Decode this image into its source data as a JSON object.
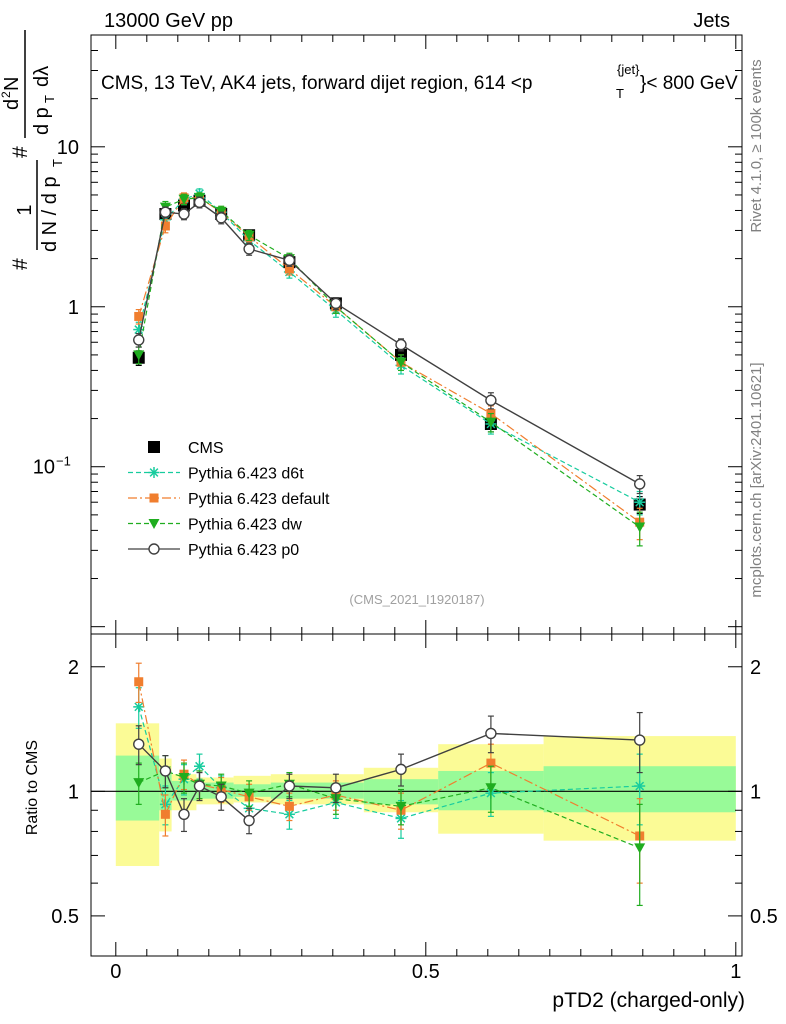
{
  "header": {
    "left": "13000 GeV pp",
    "right": "Jets"
  },
  "title": {
    "main": "CMS, 13 TeV, AK4 jets, forward dijet region, 614 <p",
    "sup": "{jet}",
    "sub": "T",
    "end": "}< 800 GeV"
  },
  "side_labels": {
    "rivet": "Rivet 4.1.0, ≥ 100k events",
    "mcplots": "mcplots.cern.ch [arXiv:2401.10621]"
  },
  "watermark": "(CMS_2021_I1920187)",
  "ylabel_top": {
    "hash1": "#",
    "one": "1",
    "den": "d N / d p",
    "den_sub": "T",
    "hash2": "#",
    "num": "d",
    "num_sup": "2",
    "num_rest": "N",
    "den2": "d p",
    "den2_sub": "T",
    "den2_rest": "dλ"
  },
  "chart_data": [
    {
      "type": "scatter",
      "panel": "main",
      "xlabel": "pTD2 (charged-only)",
      "ylabel": "# 1/(d N / d pT) # d2N/(d pT dλ)",
      "yscale": "log",
      "xlim": [
        -0.04,
        1.01
      ],
      "ylim": [
        0.009,
        50
      ],
      "y_ticks": [
        {
          "v": 10,
          "label": "10"
        },
        {
          "v": 1,
          "label": "1"
        },
        {
          "v": 0.1,
          "label": "10",
          "sup": "−1"
        }
      ],
      "x": [
        0.037,
        0.08,
        0.11,
        0.135,
        0.17,
        0.215,
        0.28,
        0.355,
        0.46,
        0.605,
        0.845
      ],
      "series": [
        {
          "name": "CMS",
          "color": "#000000",
          "style": "data",
          "values": [
            0.48,
            3.8,
            4.3,
            4.6,
            3.8,
            2.8,
            1.9,
            1.05,
            0.5,
            0.185,
            0.058
          ],
          "err": [
            0.05,
            0.3,
            0.3,
            0.3,
            0.25,
            0.2,
            0.15,
            0.08,
            0.05,
            0.02,
            0.007
          ]
        },
        {
          "name": "Pythia 6.423 d6t",
          "color": "#17cc9e",
          "style": "dashed",
          "marker": "star",
          "values": [
            0.72,
            3.5,
            4.7,
            5.1,
            3.9,
            2.6,
            1.65,
            0.95,
            0.43,
            0.185,
            0.06
          ],
          "err": [
            0.08,
            0.35,
            0.35,
            0.35,
            0.3,
            0.2,
            0.14,
            0.09,
            0.05,
            0.025,
            0.01
          ]
        },
        {
          "name": "Pythia 6.423 default",
          "color": "#f07e2e",
          "style": "dashdot",
          "marker": "square",
          "values": [
            0.87,
            3.2,
            4.8,
            4.8,
            3.9,
            2.75,
            1.72,
            1.0,
            0.45,
            0.215,
            0.045
          ],
          "err": [
            0.09,
            0.3,
            0.35,
            0.35,
            0.3,
            0.2,
            0.14,
            0.09,
            0.05,
            0.025,
            0.01
          ]
        },
        {
          "name": "Pythia 6.423 dw",
          "color": "#1fad1f",
          "style": "dashed",
          "marker": "tri_down",
          "values": [
            0.5,
            4.2,
            4.7,
            4.8,
            3.95,
            2.8,
            2.0,
            1.0,
            0.45,
            0.19,
            0.042
          ],
          "err": [
            0.06,
            0.35,
            0.35,
            0.35,
            0.3,
            0.2,
            0.16,
            0.09,
            0.05,
            0.025,
            0.01
          ]
        },
        {
          "name": "Pythia 6.423 p0",
          "color": "#404040",
          "style": "solid",
          "marker": "circle_open",
          "values": [
            0.62,
            3.9,
            3.8,
            4.5,
            3.6,
            2.3,
            1.95,
            1.05,
            0.58,
            0.26,
            0.078
          ],
          "err": [
            0.06,
            0.3,
            0.3,
            0.35,
            0.3,
            0.2,
            0.16,
            0.09,
            0.05,
            0.03,
            0.01
          ]
        }
      ]
    },
    {
      "type": "scatter",
      "panel": "ratio",
      "xlabel": "pTD2 (charged-only)",
      "ylabel": "Ratio to CMS",
      "yscale": "log",
      "xlim": [
        -0.04,
        1.01
      ],
      "ylim": [
        0.4,
        2.4
      ],
      "x_ticks": [
        {
          "v": 0,
          "label": "0"
        },
        {
          "v": 0.5,
          "label": "0.5"
        },
        {
          "v": 1,
          "label": "1"
        }
      ],
      "y_ticks": [
        {
          "v": 2,
          "label": "2"
        },
        {
          "v": 1,
          "label": "1"
        },
        {
          "v": 0.5,
          "label": "0.5"
        }
      ],
      "bands": [
        {
          "x0": 0.0,
          "x1": 0.07,
          "inner": [
            0.85,
            1.22
          ],
          "outer": [
            0.66,
            1.46
          ]
        },
        {
          "x0": 0.07,
          "x1": 0.09,
          "inner": [
            0.9,
            1.12
          ],
          "outer": [
            0.8,
            1.2
          ]
        },
        {
          "x0": 0.09,
          "x1": 0.13,
          "inner": [
            0.95,
            1.06
          ],
          "outer": [
            0.9,
            1.1
          ]
        },
        {
          "x0": 0.13,
          "x1": 0.19,
          "inner": [
            0.96,
            1.05
          ],
          "outer": [
            0.93,
            1.08
          ]
        },
        {
          "x0": 0.19,
          "x1": 0.25,
          "inner": [
            0.97,
            1.04
          ],
          "outer": [
            0.94,
            1.09
          ]
        },
        {
          "x0": 0.25,
          "x1": 0.4,
          "inner": [
            0.96,
            1.05
          ],
          "outer": [
            0.93,
            1.1
          ]
        },
        {
          "x0": 0.4,
          "x1": 0.52,
          "inner": [
            0.93,
            1.07
          ],
          "outer": [
            0.89,
            1.14
          ]
        },
        {
          "x0": 0.52,
          "x1": 0.69,
          "inner": [
            0.9,
            1.12
          ],
          "outer": [
            0.79,
            1.3
          ]
        },
        {
          "x0": 0.69,
          "x1": 1.0,
          "inner": [
            0.89,
            1.15
          ],
          "outer": [
            0.76,
            1.36
          ]
        }
      ],
      "x": [
        0.037,
        0.08,
        0.11,
        0.135,
        0.17,
        0.215,
        0.28,
        0.355,
        0.46,
        0.605,
        0.845
      ],
      "series": [
        {
          "name": "Pythia 6.423 d6t",
          "color": "#17cc9e",
          "style": "dashed",
          "marker": "star",
          "values": [
            1.6,
            0.93,
            1.07,
            1.15,
            1.02,
            0.91,
            0.88,
            0.94,
            0.86,
            0.99,
            1.03
          ],
          "err": [
            0.18,
            0.1,
            0.09,
            0.08,
            0.07,
            0.07,
            0.07,
            0.08,
            0.09,
            0.12,
            0.2
          ]
        },
        {
          "name": "Pythia 6.423 default",
          "color": "#f07e2e",
          "style": "dashdot",
          "marker": "square",
          "values": [
            1.84,
            0.88,
            1.1,
            1.04,
            1.01,
            0.97,
            0.92,
            0.98,
            0.9,
            1.17,
            0.78
          ],
          "err": [
            0.2,
            0.1,
            0.09,
            0.08,
            0.07,
            0.07,
            0.07,
            0.08,
            0.09,
            0.13,
            0.18
          ]
        },
        {
          "name": "Pythia 6.423 dw",
          "color": "#1fad1f",
          "style": "dashed",
          "marker": "tri_down",
          "values": [
            1.05,
            1.12,
            1.08,
            1.04,
            1.03,
            0.99,
            1.04,
            0.96,
            0.92,
            1.02,
            0.73
          ],
          "err": [
            0.12,
            0.1,
            0.09,
            0.08,
            0.07,
            0.07,
            0.07,
            0.08,
            0.09,
            0.13,
            0.2
          ]
        },
        {
          "name": "Pythia 6.423 p0",
          "color": "#404040",
          "style": "solid",
          "marker": "circle_open",
          "values": [
            1.3,
            1.12,
            0.88,
            1.03,
            0.97,
            0.85,
            1.03,
            1.02,
            1.13,
            1.38,
            1.33
          ],
          "err": [
            0.14,
            0.1,
            0.08,
            0.08,
            0.07,
            0.06,
            0.07,
            0.08,
            0.1,
            0.14,
            0.22
          ]
        }
      ]
    }
  ]
}
